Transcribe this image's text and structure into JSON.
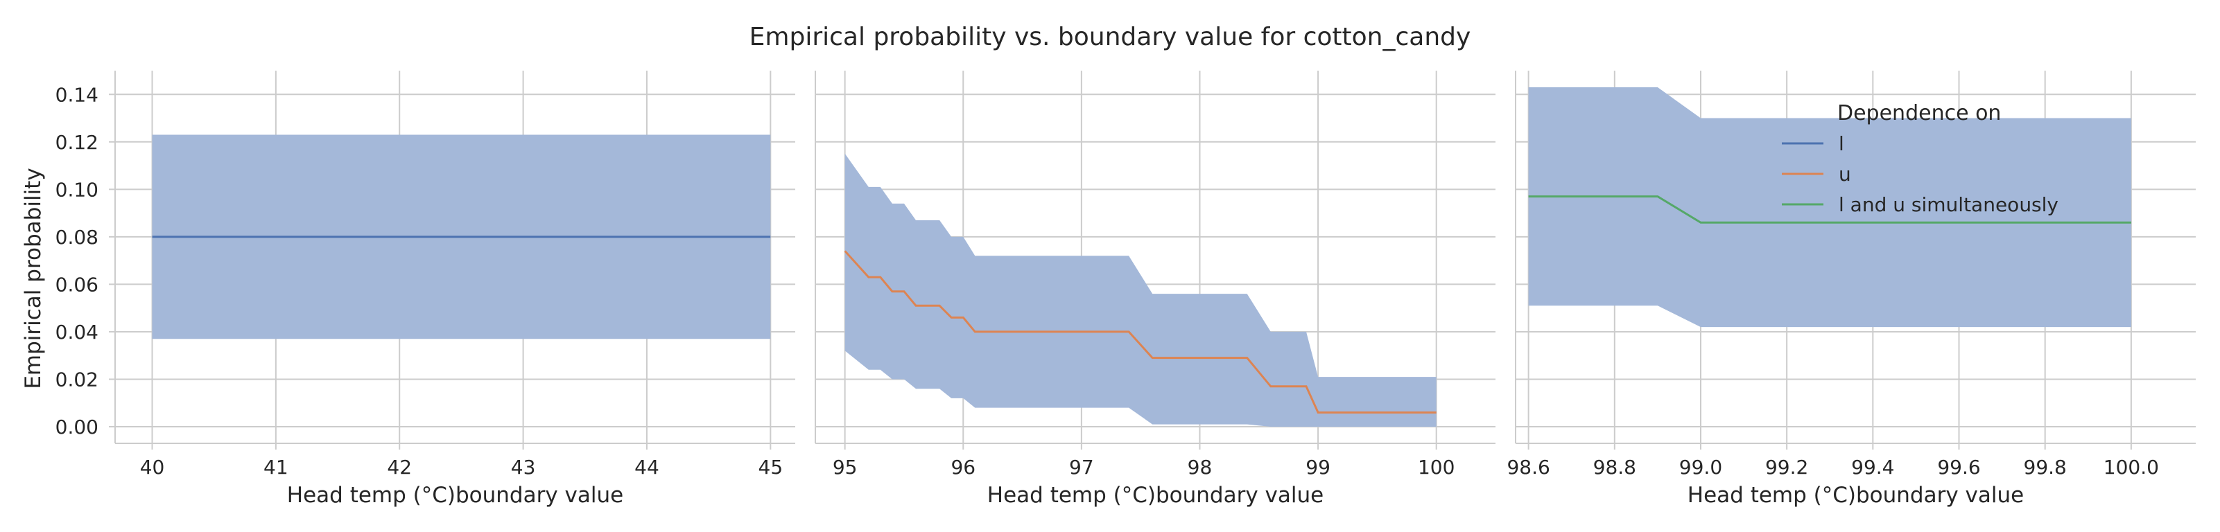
{
  "title": "Empirical probability vs. boundary value for cotton_candy",
  "ylabel": "Empirical probability",
  "legend": {
    "title": "Dependence on",
    "entries": [
      {
        "label": "l",
        "color": "#4c72b0"
      },
      {
        "label": "u",
        "color": "#dd8452"
      },
      {
        "label": "l and u simultaneously",
        "color": "#55a868"
      }
    ]
  },
  "colors": {
    "band": "#a4b8d9",
    "grid": "#cccccc",
    "spine": "#cccccc"
  },
  "chart_data": [
    {
      "type": "line",
      "xlabel": "Head temp (°C)boundary value",
      "ylabel": "Empirical probability",
      "xlim": [
        39.7,
        45.2
      ],
      "ylim": [
        -0.007,
        0.15
      ],
      "xticks": [
        "40",
        "41",
        "42",
        "43",
        "44",
        "45"
      ],
      "yticks": [
        "0.00",
        "0.02",
        "0.04",
        "0.06",
        "0.08",
        "0.10",
        "0.12",
        "0.14"
      ],
      "series": [
        {
          "name": "l",
          "color": "#4c72b0",
          "x": [
            40,
            45
          ],
          "y": [
            0.08,
            0.08
          ],
          "band_lower": [
            0.037,
            0.037
          ],
          "band_upper": [
            0.123,
            0.123
          ]
        }
      ]
    },
    {
      "type": "line",
      "xlabel": "Head temp (°C)boundary value",
      "ylabel": "",
      "xlim": [
        94.75,
        100.5
      ],
      "ylim": [
        -0.007,
        0.15
      ],
      "xticks": [
        "95",
        "96",
        "97",
        "98",
        "99",
        "100"
      ],
      "yticks": [],
      "series": [
        {
          "name": "u",
          "color": "#dd8452",
          "x": [
            95.0,
            95.2,
            95.3,
            95.4,
            95.5,
            95.6,
            95.8,
            95.9,
            96.0,
            96.1,
            96.5,
            97.0,
            97.4,
            97.6,
            98.0,
            98.4,
            98.6,
            98.9,
            99.0,
            100.0
          ],
          "y": [
            0.074,
            0.063,
            0.063,
            0.057,
            0.057,
            0.051,
            0.051,
            0.046,
            0.046,
            0.04,
            0.04,
            0.04,
            0.04,
            0.029,
            0.029,
            0.029,
            0.017,
            0.017,
            0.006,
            0.006
          ],
          "band_lower": [
            0.032,
            0.024,
            0.024,
            0.02,
            0.02,
            0.016,
            0.016,
            0.012,
            0.012,
            0.008,
            0.008,
            0.008,
            0.008,
            0.001,
            0.001,
            0.001,
            0.0,
            0.0,
            0.0,
            0.0
          ],
          "band_upper": [
            0.115,
            0.101,
            0.101,
            0.094,
            0.094,
            0.087,
            0.087,
            0.08,
            0.08,
            0.072,
            0.072,
            0.072,
            0.072,
            0.056,
            0.056,
            0.056,
            0.04,
            0.04,
            0.021,
            0.021
          ]
        }
      ]
    },
    {
      "type": "line",
      "xlabel": "Head temp (°C)boundary value",
      "ylabel": "",
      "xlim": [
        98.57,
        100.15
      ],
      "ylim": [
        -0.007,
        0.15
      ],
      "xticks": [
        "98.6",
        "98.8",
        "99.0",
        "99.2",
        "99.4",
        "99.6",
        "99.8",
        "100.0"
      ],
      "yticks": [],
      "series": [
        {
          "name": "l and u simultaneously",
          "color": "#55a868",
          "x": [
            98.6,
            98.9,
            99.0,
            100.0
          ],
          "y": [
            0.097,
            0.097,
            0.086,
            0.086
          ],
          "band_lower": [
            0.051,
            0.051,
            0.042,
            0.042
          ],
          "band_upper": [
            0.143,
            0.143,
            0.13,
            0.13
          ]
        }
      ]
    }
  ]
}
